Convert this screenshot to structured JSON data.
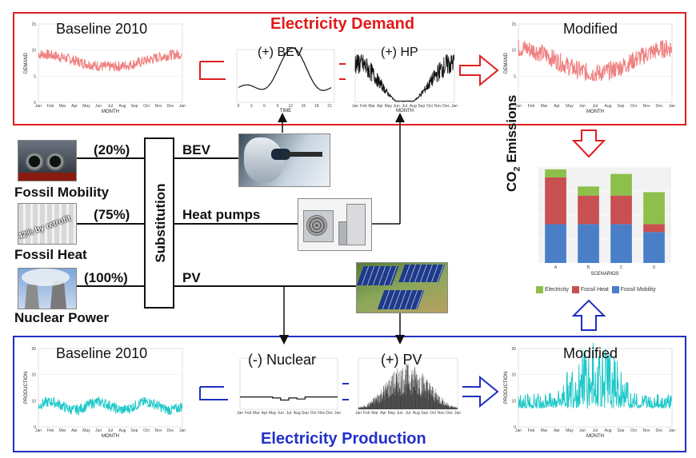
{
  "demand": {
    "title": "Electricity Demand",
    "baseline_title": "Baseline 2010",
    "modified_title": "Modified",
    "bev_plot_title": "(+) BEV",
    "hp_plot_title": "(+) HP",
    "ylabel": "DEMAND",
    "xlabel": "MONTH",
    "bev_xlabel": "TIME",
    "y_ticks": [
      "0",
      "5",
      "10",
      "15"
    ],
    "months": [
      "Jan",
      "Feb",
      "Mar",
      "Apr",
      "May",
      "Jun",
      "Jul",
      "Aug",
      "Sep",
      "Oct",
      "Nov",
      "Dec",
      "Jan"
    ],
    "bev_ticks": [
      "0",
      "3",
      "6",
      "9",
      "12",
      "15",
      "18",
      "21"
    ],
    "color": "#f08080"
  },
  "production": {
    "title": "Electricity Production",
    "baseline_title": "Baseline 2010",
    "modified_title": "Modified",
    "nuclear_plot_title": "(-) Nuclear",
    "pv_plot_title": "(+) PV",
    "ylabel": "PRODUCTION",
    "xlabel": "MONTH",
    "y_ticks": [
      "0",
      "10",
      "20",
      "30"
    ],
    "months": [
      "Jan",
      "Feb",
      "Mar",
      "Apr",
      "May",
      "Jun",
      "Jul",
      "Aug",
      "Sep",
      "Oct",
      "Nov",
      "Dec",
      "Jan"
    ],
    "color": "#1ec8c8"
  },
  "sources": [
    {
      "label": "Fossil Mobility",
      "share": "(20%)",
      "target": "BEV"
    },
    {
      "label": "Fossil Heat",
      "share": "(75%)",
      "target": "Heat pumps"
    },
    {
      "label": "Nuclear Power",
      "share": "(100%)",
      "target": "PV"
    }
  ],
  "substitution_label": "Substitution",
  "radiator_text": "-42% by retrofit",
  "emissions": {
    "title_main": "CO",
    "title_sub": "2",
    "title_rest": " Emissions",
    "legend": [
      "Electricity",
      "Fossil Heat",
      "Fossil Mobility"
    ]
  },
  "chart_data": {
    "type": "bar",
    "stacked": true,
    "categories": [
      "A",
      "B",
      "C",
      "D"
    ],
    "xlabel": "SCENARIOS",
    "series": [
      {
        "name": "Fossil Mobility",
        "color": "#4a7fc8",
        "values": [
          17,
          17,
          17,
          13.5
        ]
      },
      {
        "name": "Fossil Heat",
        "color": "#c85050",
        "values": [
          20.5,
          12.5,
          12.5,
          3.5
        ]
      },
      {
        "name": "Electricity",
        "color": "#8cc04a",
        "values": [
          3.5,
          4,
          9.5,
          14
        ]
      }
    ],
    "ylim": [
      0,
      42
    ],
    "grid": true
  },
  "colors": {
    "demand_frame": "#e02020",
    "production_frame": "#1f2fbf"
  }
}
